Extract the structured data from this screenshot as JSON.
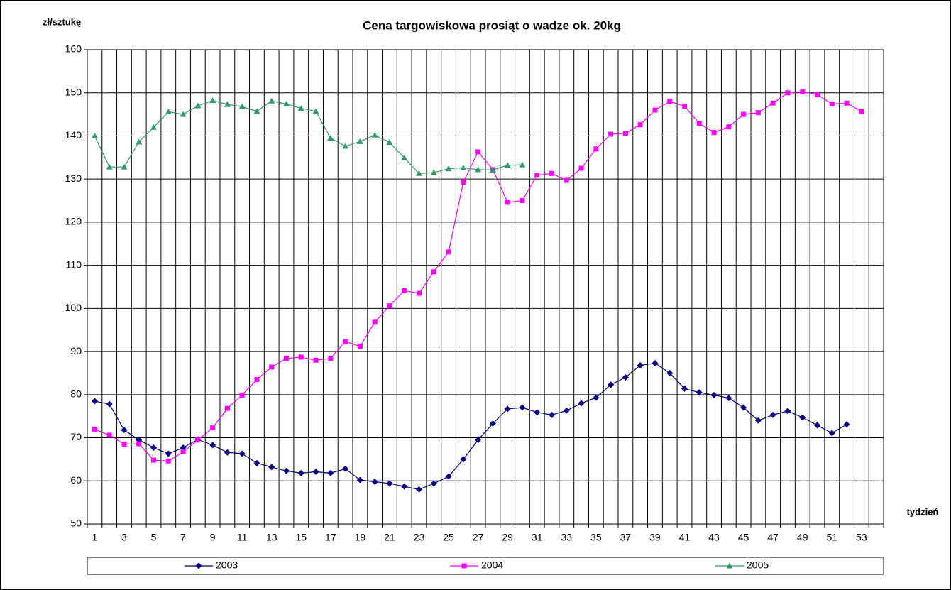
{
  "chart_data": {
    "type": "line",
    "title": "Cena targowiskowa prosiąt o wadze ok. 20kg",
    "y_label": "zł/sztukę",
    "x_label": "tydzień",
    "categories": [
      1,
      null,
      3,
      null,
      5,
      null,
      7,
      null,
      9,
      null,
      11,
      null,
      13,
      null,
      15,
      null,
      17,
      null,
      19,
      null,
      21,
      null,
      23,
      null,
      25,
      null,
      27,
      null,
      29,
      null,
      31,
      null,
      33,
      null,
      35,
      null,
      37,
      null,
      39,
      null,
      41,
      null,
      43,
      null,
      45,
      null,
      47,
      null,
      49,
      null,
      51,
      null,
      53,
      null
    ],
    "series": [
      {
        "name": "2003",
        "color": "#000080",
        "marker": "diamond",
        "values": [
          78.5,
          77.8,
          71.8,
          69.5,
          67.7,
          66.3,
          67.7,
          69.6,
          68.3,
          66.6,
          66.3,
          64.1,
          63.2,
          62.3,
          61.8,
          62.1,
          61.8,
          62.8,
          60.2,
          59.8,
          59.4,
          58.7,
          58.0,
          59.4,
          61.0,
          65.0,
          69.5,
          73.3,
          76.7,
          77.0,
          75.9,
          75.3,
          76.3,
          78.0,
          79.3,
          82.3,
          84.0,
          86.8,
          87.3,
          85.0,
          81.4,
          80.5,
          79.9,
          79.2,
          77.0,
          74.0,
          75.3,
          76.2,
          74.7,
          72.9,
          71.1,
          73.1,
          null,
          null
        ]
      },
      {
        "name": "2004",
        "color": "#FF00FF",
        "marker": "square",
        "values": [
          72.0,
          70.6,
          68.5,
          68.6,
          64.8,
          64.6,
          66.7,
          69.5,
          72.3,
          76.8,
          79.9,
          83.5,
          86.4,
          88.4,
          88.7,
          88.0,
          88.4,
          92.3,
          91.2,
          96.8,
          100.6,
          104.1,
          103.5,
          108.5,
          113.1,
          129.3,
          136.3,
          132.2,
          124.6,
          125.0,
          130.9,
          131.3,
          129.7,
          132.5,
          137.0,
          140.4,
          140.6,
          142.6,
          146.0,
          148.0,
          146.9,
          142.9,
          140.8,
          142.1,
          145.0,
          145.4,
          147.6,
          150.0,
          150.2,
          149.6,
          147.4,
          147.6,
          145.7,
          null
        ]
      },
      {
        "name": "2005",
        "color": "#339966",
        "marker": "triangle",
        "values": [
          140.0,
          132.8,
          132.8,
          138.6,
          142.0,
          145.6,
          145.0,
          147.0,
          148.2,
          147.3,
          146.8,
          145.7,
          148.1,
          147.4,
          146.4,
          145.7,
          139.5,
          137.6,
          138.7,
          140.2,
          138.5,
          134.9,
          131.3,
          131.5,
          132.4,
          132.6,
          132.2,
          132.1,
          133.2,
          133.3,
          null,
          null,
          null,
          null,
          null,
          null,
          null,
          null,
          null,
          null,
          null,
          null,
          null,
          null,
          null,
          null,
          null,
          null,
          null,
          null,
          null,
          null,
          null,
          null
        ]
      }
    ],
    "ylim": [
      50,
      160
    ],
    "yticks": [
      50,
      60,
      70,
      80,
      90,
      100,
      110,
      120,
      130,
      140,
      150,
      160
    ],
    "grid": true,
    "legend": "bottom"
  }
}
